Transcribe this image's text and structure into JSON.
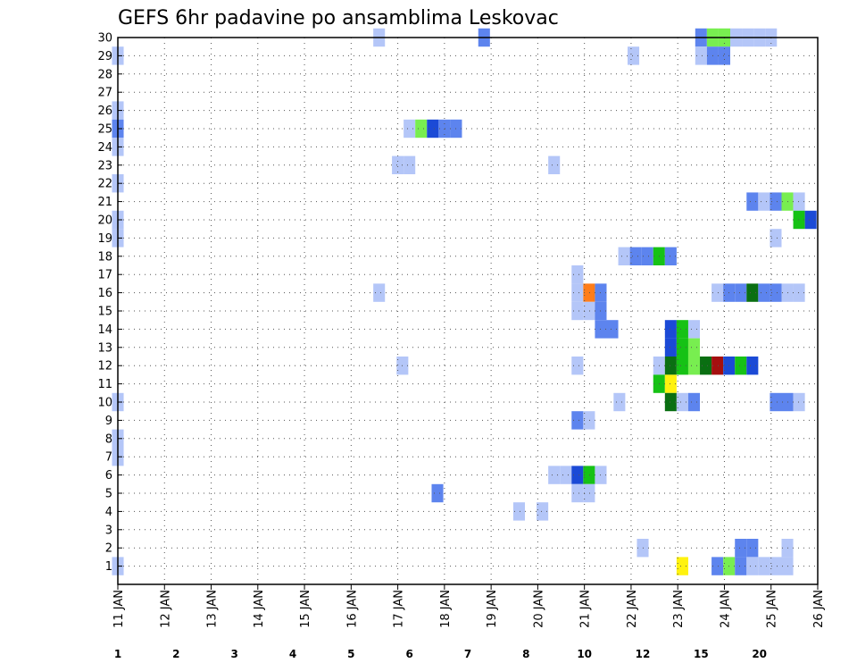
{
  "chart_data": {
    "type": "heatmap",
    "title": "GEFS 6hr padavine po ansamblima Leskovac",
    "xlabel": "",
    "ylabel": "",
    "x_ticks": [
      "11 JAN",
      "12 JAN",
      "13 JAN",
      "14 JAN",
      "15 JAN",
      "16 JAN",
      "17 JAN",
      "18 JAN",
      "19 JAN",
      "20 JAN",
      "21 JAN",
      "22 JAN",
      "23 JAN",
      "24 JAN",
      "25 JAN",
      "26 JAN"
    ],
    "x_range": [
      11,
      26
    ],
    "y_ticks": [
      1,
      2,
      3,
      4,
      5,
      6,
      7,
      8,
      9,
      10,
      11,
      12,
      13,
      14,
      15,
      16,
      17,
      18,
      19,
      20,
      21,
      22,
      23,
      24,
      25,
      26,
      27,
      28,
      29,
      30
    ],
    "y_range": [
      0,
      30
    ],
    "grid": true,
    "legend_position": "bottom",
    "legend": {
      "labels": [
        "1",
        "2",
        "3",
        "4",
        "5",
        "6",
        "7",
        "8",
        "10",
        "12",
        "15",
        "20"
      ],
      "colors": [
        "#b4c6f8",
        "#5d84ee",
        "#1b4ad6",
        "#78ee50",
        "#16c215",
        "#0a6f12",
        "#fff20f",
        "#ffb433",
        "#ff7d1a",
        "#e3330f",
        "#a50f0f",
        "#620a0a"
      ]
    },
    "cells": [
      {
        "m": 30,
        "x": 16.6,
        "c": 1
      },
      {
        "m": 30,
        "x": 18.85,
        "c": 2
      },
      {
        "m": 30,
        "x": 23.5,
        "c": 2
      },
      {
        "m": 30,
        "x": 23.75,
        "c": 4
      },
      {
        "m": 30,
        "x": 24.0,
        "c": 4
      },
      {
        "m": 30,
        "x": 24.25,
        "c": 1
      },
      {
        "m": 30,
        "x": 24.5,
        "c": 1
      },
      {
        "m": 30,
        "x": 24.75,
        "c": 1
      },
      {
        "m": 30,
        "x": 25.0,
        "c": 1
      },
      {
        "m": 29,
        "x": 11.0,
        "c": 1
      },
      {
        "m": 29,
        "x": 22.05,
        "c": 1
      },
      {
        "m": 29,
        "x": 23.5,
        "c": 1
      },
      {
        "m": 29,
        "x": 23.75,
        "c": 2
      },
      {
        "m": 29,
        "x": 24.0,
        "c": 2
      },
      {
        "m": 26,
        "x": 11.0,
        "c": 1
      },
      {
        "m": 25,
        "x": 11.0,
        "c": 2
      },
      {
        "m": 24,
        "x": 11.0,
        "c": 1
      },
      {
        "m": 25,
        "x": 17.25,
        "c": 1
      },
      {
        "m": 25,
        "x": 17.5,
        "c": 4
      },
      {
        "m": 25,
        "x": 17.75,
        "c": 3
      },
      {
        "m": 25,
        "x": 18.0,
        "c": 2
      },
      {
        "m": 25,
        "x": 18.25,
        "c": 2
      },
      {
        "m": 23,
        "x": 17.0,
        "c": 1
      },
      {
        "m": 23,
        "x": 17.25,
        "c": 1
      },
      {
        "m": 23,
        "x": 20.35,
        "c": 1
      },
      {
        "m": 22,
        "x": 11.0,
        "c": 1
      },
      {
        "m": 21,
        "x": 24.6,
        "c": 2
      },
      {
        "m": 21,
        "x": 24.85,
        "c": 1
      },
      {
        "m": 21,
        "x": 25.1,
        "c": 2
      },
      {
        "m": 21,
        "x": 25.35,
        "c": 4
      },
      {
        "m": 21,
        "x": 25.6,
        "c": 1
      },
      {
        "m": 20,
        "x": 11.0,
        "c": 1
      },
      {
        "m": 20,
        "x": 25.6,
        "c": 5
      },
      {
        "m": 20,
        "x": 25.85,
        "c": 3
      },
      {
        "m": 19,
        "x": 11.0,
        "c": 1
      },
      {
        "m": 19,
        "x": 25.1,
        "c": 1
      },
      {
        "m": 18,
        "x": 21.85,
        "c": 1
      },
      {
        "m": 18,
        "x": 22.1,
        "c": 2
      },
      {
        "m": 18,
        "x": 22.35,
        "c": 2
      },
      {
        "m": 18,
        "x": 22.6,
        "c": 5
      },
      {
        "m": 18,
        "x": 22.85,
        "c": 2
      },
      {
        "m": 17,
        "x": 20.85,
        "c": 1
      },
      {
        "m": 16,
        "x": 16.6,
        "c": 1
      },
      {
        "m": 16,
        "x": 20.85,
        "c": 1
      },
      {
        "m": 16,
        "x": 21.1,
        "c": 9
      },
      {
        "m": 16,
        "x": 21.35,
        "c": 2
      },
      {
        "m": 16,
        "x": 23.85,
        "c": 1
      },
      {
        "m": 16,
        "x": 24.1,
        "c": 2
      },
      {
        "m": 16,
        "x": 24.35,
        "c": 2
      },
      {
        "m": 16,
        "x": 24.6,
        "c": 6
      },
      {
        "m": 16,
        "x": 24.85,
        "c": 2
      },
      {
        "m": 16,
        "x": 25.1,
        "c": 2
      },
      {
        "m": 16,
        "x": 25.35,
        "c": 1
      },
      {
        "m": 16,
        "x": 25.6,
        "c": 1
      },
      {
        "m": 15,
        "x": 20.85,
        "c": 1
      },
      {
        "m": 15,
        "x": 21.1,
        "c": 1
      },
      {
        "m": 15,
        "x": 21.35,
        "c": 2
      },
      {
        "m": 14,
        "x": 21.35,
        "c": 2
      },
      {
        "m": 14,
        "x": 21.6,
        "c": 2
      },
      {
        "m": 14,
        "x": 22.85,
        "c": 3
      },
      {
        "m": 14,
        "x": 23.1,
        "c": 5
      },
      {
        "m": 14,
        "x": 23.35,
        "c": 1
      },
      {
        "m": 13,
        "x": 22.85,
        "c": 3
      },
      {
        "m": 13,
        "x": 23.1,
        "c": 5
      },
      {
        "m": 13,
        "x": 23.35,
        "c": 4
      },
      {
        "m": 12,
        "x": 22.6,
        "c": 1
      },
      {
        "m": 12,
        "x": 22.85,
        "c": 6
      },
      {
        "m": 12,
        "x": 23.1,
        "c": 5
      },
      {
        "m": 12,
        "x": 23.35,
        "c": 4
      },
      {
        "m": 12,
        "x": 23.6,
        "c": 6
      },
      {
        "m": 12,
        "x": 23.85,
        "c": 11
      },
      {
        "m": 12,
        "x": 24.1,
        "c": 3
      },
      {
        "m": 12,
        "x": 24.35,
        "c": 5
      },
      {
        "m": 12,
        "x": 24.6,
        "c": 3
      },
      {
        "m": 12,
        "x": 17.1,
        "c": 1
      },
      {
        "m": 12,
        "x": 20.85,
        "c": 1
      },
      {
        "m": 11,
        "x": 22.6,
        "c": 5
      },
      {
        "m": 11,
        "x": 22.85,
        "c": 7
      },
      {
        "m": 10,
        "x": 22.85,
        "c": 6
      },
      {
        "m": 10,
        "x": 23.1,
        "c": 1
      },
      {
        "m": 10,
        "x": 23.35,
        "c": 2
      },
      {
        "m": 10,
        "x": 25.1,
        "c": 2
      },
      {
        "m": 10,
        "x": 25.35,
        "c": 2
      },
      {
        "m": 10,
        "x": 25.6,
        "c": 1
      },
      {
        "m": 10,
        "x": 11.0,
        "c": 1
      },
      {
        "m": 10,
        "x": 21.75,
        "c": 1
      },
      {
        "m": 9,
        "x": 20.85,
        "c": 2
      },
      {
        "m": 9,
        "x": 21.1,
        "c": 1
      },
      {
        "m": 8,
        "x": 11.0,
        "c": 1
      },
      {
        "m": 7,
        "x": 11.0,
        "c": 1
      },
      {
        "m": 6,
        "x": 20.35,
        "c": 1
      },
      {
        "m": 6,
        "x": 20.6,
        "c": 1
      },
      {
        "m": 6,
        "x": 20.85,
        "c": 3
      },
      {
        "m": 6,
        "x": 21.1,
        "c": 5
      },
      {
        "m": 6,
        "x": 21.35,
        "c": 1
      },
      {
        "m": 5,
        "x": 17.85,
        "c": 2
      },
      {
        "m": 5,
        "x": 20.85,
        "c": 1
      },
      {
        "m": 5,
        "x": 21.1,
        "c": 1
      },
      {
        "m": 4,
        "x": 19.6,
        "c": 1
      },
      {
        "m": 4,
        "x": 20.1,
        "c": 1
      },
      {
        "m": 2,
        "x": 24.35,
        "c": 2
      },
      {
        "m": 2,
        "x": 24.6,
        "c": 2
      },
      {
        "m": 2,
        "x": 22.25,
        "c": 1
      },
      {
        "m": 2,
        "x": 25.35,
        "c": 1
      },
      {
        "m": 1,
        "x": 11.0,
        "c": 1
      },
      {
        "m": 1,
        "x": 23.1,
        "c": 7
      },
      {
        "m": 1,
        "x": 23.85,
        "c": 2
      },
      {
        "m": 1,
        "x": 24.1,
        "c": 4
      },
      {
        "m": 1,
        "x": 24.35,
        "c": 2
      },
      {
        "m": 1,
        "x": 24.6,
        "c": 1
      },
      {
        "m": 1,
        "x": 24.85,
        "c": 1
      },
      {
        "m": 1,
        "x": 25.1,
        "c": 1
      },
      {
        "m": 1,
        "x": 25.35,
        "c": 1
      }
    ]
  }
}
